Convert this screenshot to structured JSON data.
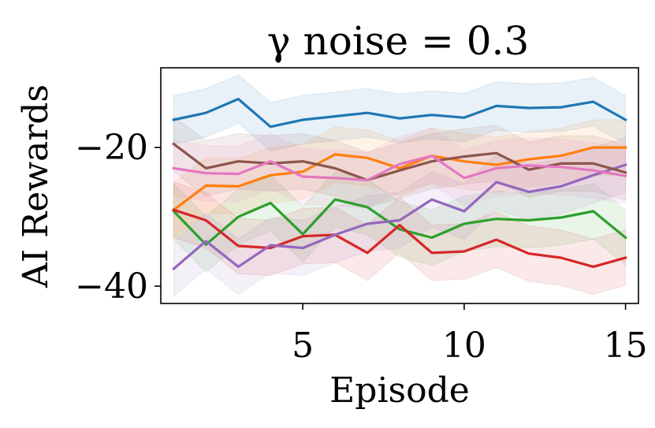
{
  "chart_data": {
    "type": "line",
    "title": "γ noise = 0.3",
    "xlabel": "Episode",
    "ylabel": "AI Rewards",
    "xlim": [
      0.6,
      15.4
    ],
    "ylim": [
      -42.5,
      -8.5
    ],
    "xticks": [
      5,
      10,
      15
    ],
    "xtick_labels": [
      "5",
      "10",
      "15"
    ],
    "yticks": [
      -20,
      -40
    ],
    "ytick_labels": [
      "−20",
      "−40"
    ],
    "grid": false,
    "legend": "none",
    "x": [
      1,
      2,
      3,
      4,
      5,
      6,
      7,
      8,
      9,
      10,
      11,
      12,
      13,
      14,
      15
    ],
    "series": [
      {
        "name": "blue",
        "color": "#1f77b4",
        "band": 3.5,
        "values": [
          -16,
          -15,
          -13,
          -17,
          -16,
          -15.5,
          -15,
          -15.8,
          -15.3,
          -15.7,
          -14,
          -14.3,
          -14.2,
          -13.4,
          -16
        ]
      },
      {
        "name": "orange",
        "color": "#ff7f0e",
        "band": 4,
        "values": [
          -29,
          -25.5,
          -25.6,
          -24,
          -23.5,
          -21,
          -21.5,
          -23,
          -21.2,
          -22,
          -22.5,
          -21.7,
          -21.2,
          -20,
          -20
        ]
      },
      {
        "name": "green",
        "color": "#2ca02c",
        "band": 4,
        "values": [
          -29.2,
          -34,
          -30,
          -28,
          -32.5,
          -27.5,
          -28.6,
          -31.8,
          -33,
          -31,
          -30.3,
          -30.5,
          -30.1,
          -29.2,
          -33
        ]
      },
      {
        "name": "red",
        "color": "#d62728",
        "band": 4,
        "values": [
          -29,
          -30.5,
          -34.2,
          -34.5,
          -32.8,
          -32.6,
          -35.2,
          -31.2,
          -35.2,
          -35,
          -33.3,
          -35.3,
          -35.9,
          -37.2,
          -35.9
        ]
      },
      {
        "name": "purple",
        "color": "#9467bd",
        "band": 4,
        "values": [
          -37.5,
          -33.5,
          -37.2,
          -34.1,
          -34.5,
          -32.6,
          -31,
          -30.5,
          -27.5,
          -29.2,
          -25,
          -26.4,
          -25.6,
          -24,
          -22.5
        ]
      },
      {
        "name": "brown",
        "color": "#8c564b",
        "band": 4,
        "values": [
          -19.5,
          -23,
          -22,
          -22.3,
          -22,
          -23,
          -24.7,
          -23.3,
          -22,
          -21.3,
          -20.8,
          -23.2,
          -22.3,
          -22.3,
          -23.6
        ]
      },
      {
        "name": "pink",
        "color": "#e377c2",
        "band": 4,
        "values": [
          -23,
          -23.7,
          -23.8,
          -22,
          -24.2,
          -24.4,
          -24.7,
          -22.4,
          -21.2,
          -24.4,
          -23,
          -22.6,
          -22.8,
          -23.3,
          -24.1
        ]
      }
    ]
  }
}
